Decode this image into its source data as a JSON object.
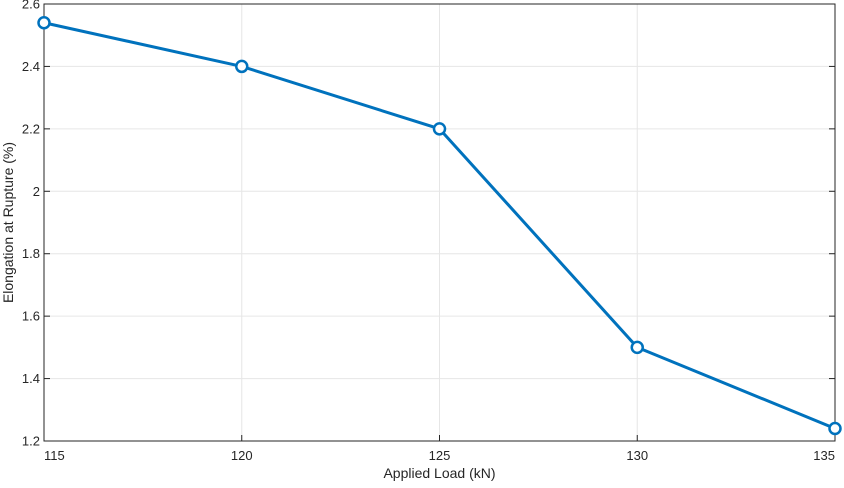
{
  "chart_data": {
    "type": "line",
    "title": "",
    "xlabel": "Applied Load (kN)",
    "ylabel": "Elongation at Rupture (%)",
    "xlim": [
      115,
      135
    ],
    "ylim": [
      1.2,
      2.6
    ],
    "xticks": [
      115,
      120,
      125,
      130,
      135
    ],
    "xtick_labels": [
      "115",
      "120",
      "125",
      "130",
      "135"
    ],
    "yticks": [
      1.2,
      1.4,
      1.6,
      1.8,
      2.0,
      2.2,
      2.4,
      2.6
    ],
    "ytick_labels": [
      "1.2",
      "1.4",
      "1.6",
      "1.8",
      "2",
      "2.2",
      "2.4",
      "2.6"
    ],
    "grid": true,
    "legend": "none",
    "series": [
      {
        "marker": "circle",
        "color": "#0072BD",
        "x": [
          115,
          120,
          125,
          130,
          135
        ],
        "y": [
          2.54,
          2.4,
          2.2,
          1.5,
          1.24
        ]
      }
    ]
  }
}
